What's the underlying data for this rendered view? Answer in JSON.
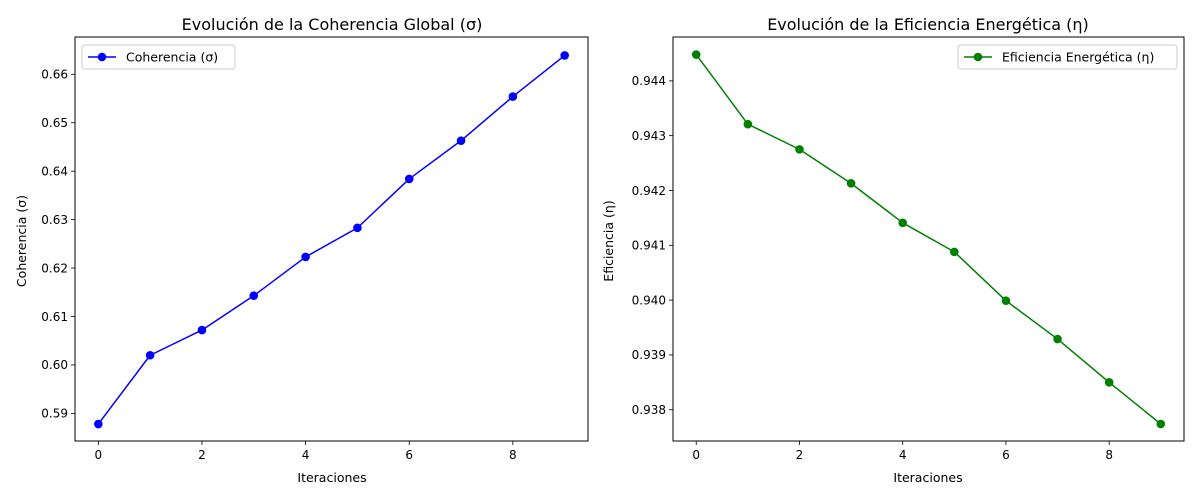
{
  "chart_data": [
    {
      "type": "line",
      "title": "Evolución de la Coherencia Global (σ)",
      "xlabel": "Iteraciones",
      "ylabel": "Coherencia (σ)",
      "x": [
        0,
        1,
        2,
        3,
        4,
        5,
        6,
        7,
        8,
        9
      ],
      "series": [
        {
          "name": "Coherencia (σ)",
          "color": "#0000ff",
          "marker": "circle",
          "values": [
            0.5878,
            0.602,
            0.6072,
            0.6143,
            0.6223,
            0.6283,
            0.6384,
            0.6463,
            0.6554,
            0.6639
          ]
        }
      ],
      "xlim": [
        -0.45,
        9.45
      ],
      "ylim": [
        0.5843,
        0.6677
      ],
      "xticks": [
        0,
        2,
        4,
        6,
        8
      ],
      "xtick_labels": [
        "0",
        "2",
        "4",
        "6",
        "8"
      ],
      "yticks": [
        0.59,
        0.6,
        0.61,
        0.62,
        0.63,
        0.64,
        0.65,
        0.66
      ],
      "ytick_labels": [
        "0.59",
        "0.60",
        "0.61",
        "0.62",
        "0.63",
        "0.64",
        "0.65",
        "0.66"
      ],
      "grid": false,
      "legend": "upper-left"
    },
    {
      "type": "line",
      "title": "Evolución de la Eficiencia Energética (η)",
      "xlabel": "Iteraciones",
      "ylabel": "Eficiencia (η)",
      "x": [
        0,
        1,
        2,
        3,
        4,
        5,
        6,
        7,
        8,
        9
      ],
      "series": [
        {
          "name": "Eficiencia Energética (η)",
          "color": "#008000",
          "marker": "circle",
          "values": [
            0.94448,
            0.94321,
            0.94275,
            0.94213,
            0.94141,
            0.94088,
            0.93999,
            0.93929,
            0.9385,
            0.93774
          ]
        }
      ],
      "xlim": [
        -0.45,
        9.45
      ],
      "ylim": [
        0.93743,
        0.9448
      ],
      "xticks": [
        0,
        2,
        4,
        6,
        8
      ],
      "xtick_labels": [
        "0",
        "2",
        "4",
        "6",
        "8"
      ],
      "yticks": [
        0.938,
        0.939,
        0.94,
        0.941,
        0.942,
        0.943,
        0.944
      ],
      "ytick_labels": [
        "0.938",
        "0.939",
        "0.940",
        "0.941",
        "0.942",
        "0.943",
        "0.944"
      ],
      "grid": false,
      "legend": "upper-right"
    }
  ]
}
